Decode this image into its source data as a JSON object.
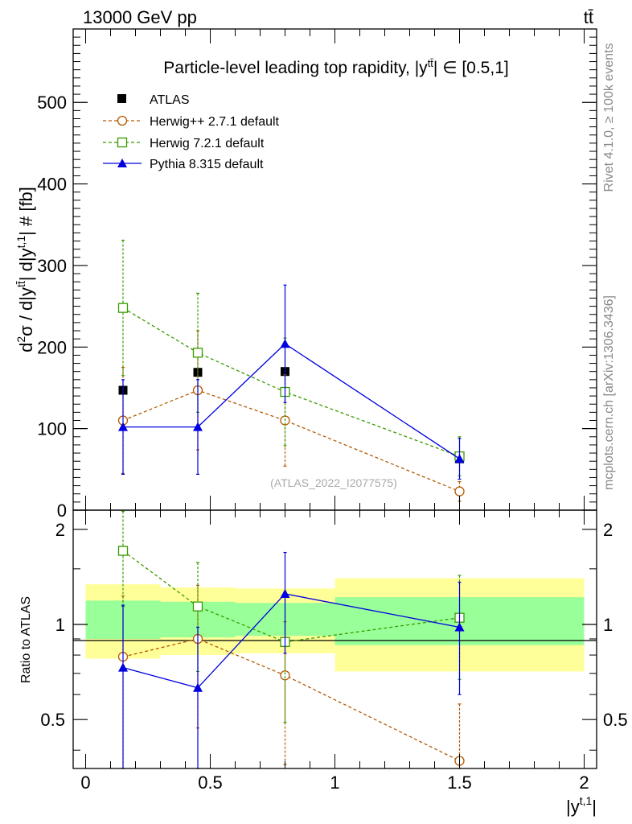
{
  "header": {
    "energy": "13000 GeV pp",
    "process": "tt̄"
  },
  "side_texts": {
    "rivet": "Rivet 4.1.0, ≥ 100k events",
    "mcplots": "mcplots.cern.ch [arXiv:1306.3436]"
  },
  "watermark": "(ATLAS_2022_I2077575)",
  "colors": {
    "atlas": "#000000",
    "herwigpp": "#b35900",
    "herwig7": "#3a9a00",
    "pythia": "#0000e0",
    "band_outer": "#ffff99",
    "band_inner": "#99ff99"
  },
  "chart_data": [
    {
      "type": "scatter",
      "title": "Particle-level leading top rapidity, |y^{tt̄}| ∈ [0.5,1]",
      "title_parts": {
        "main": "Particle-level leading top rapidity, |y",
        "sup": "tt̄",
        "tail": "| ∈ [0.5,1]"
      },
      "ylabel": "d²σ / d|y^{tt̄}| d|y^{t,1}| # [fb]",
      "ylabel_parts": {
        "d": "d",
        "sq": "2",
        "sigma": "σ / d|y",
        "sup1": "tt̄",
        "mid": "| d|y",
        "sup2": "t,1",
        "tail": "| # [fb]"
      },
      "xlim": [
        -0.05,
        2.05
      ],
      "ylim": [
        0,
        590
      ],
      "y_ticks": [
        0,
        100,
        200,
        300,
        400,
        500
      ],
      "y_tick_labels": [
        "0",
        "100",
        "200",
        "300",
        "400",
        "500"
      ],
      "x_bins": [
        [
          0,
          0.3
        ],
        [
          0.3,
          0.6
        ],
        [
          0.6,
          1.0
        ],
        [
          1.0,
          2.0
        ]
      ],
      "x": [
        0.15,
        0.45,
        0.8,
        1.5
      ],
      "series": [
        {
          "name": "ATLAS",
          "marker": "square-filled",
          "line": "none",
          "values": [
            147,
            169,
            170,
            63
          ],
          "err": [
            0,
            0,
            0,
            0
          ]
        },
        {
          "name": "Herwig++ 2.7.1 default",
          "marker": "circle-open",
          "line": "dashed",
          "values": [
            110,
            147,
            110,
            23
          ],
          "err": [
            65,
            73,
            56,
            12
          ]
        },
        {
          "name": "Herwig 7.2.1 default",
          "marker": "square-open",
          "line": "dashed",
          "values": [
            248,
            193,
            145,
            66
          ],
          "err": [
            83,
            73,
            66,
            24
          ]
        },
        {
          "name": "Pythia 8.315 default",
          "marker": "triangle-filled",
          "line": "solid",
          "values": [
            102,
            102,
            204,
            63
          ],
          "err": [
            58,
            58,
            72,
            25
          ]
        }
      ]
    },
    {
      "type": "scatter",
      "title": "",
      "ylabel": "Ratio to ATLAS",
      "xlabel": "|y^{t,1}|",
      "xlabel_parts": {
        "main": "|y",
        "sup": "t,1",
        "tail": "|"
      },
      "xlim": [
        -0.05,
        2.05
      ],
      "ylim": [
        0.35,
        2.3
      ],
      "y_ticks": [
        0.5,
        1,
        2
      ],
      "y_tick_labels": [
        "0.5",
        "1",
        "2"
      ],
      "x_ticks": [
        0,
        0.5,
        1,
        1.5,
        2
      ],
      "x_tick_labels": [
        "0",
        "0.5",
        "1",
        "1.5",
        "2"
      ],
      "x": [
        0.15,
        0.45,
        0.8,
        1.5
      ],
      "bands": [
        {
          "xlo": 0.0,
          "xhi": 0.3,
          "outer": [
            0.78,
            1.34
          ],
          "inner": [
            0.9,
            1.19
          ]
        },
        {
          "xlo": 0.3,
          "xhi": 0.6,
          "outer": [
            0.8,
            1.31
          ],
          "inner": [
            0.91,
            1.18
          ]
        },
        {
          "xlo": 0.6,
          "xhi": 1.0,
          "outer": [
            0.81,
            1.3
          ],
          "inner": [
            0.92,
            1.17
          ]
        },
        {
          "xlo": 1.0,
          "xhi": 2.0,
          "outer": [
            0.71,
            1.4
          ],
          "inner": [
            0.86,
            1.22
          ]
        }
      ],
      "series": [
        {
          "name": "Herwig++ 2.7.1 default",
          "values": [
            0.79,
            0.9,
            0.69,
            0.37
          ],
          "err": [
            0.44,
            0.43,
            0.33,
            0.19
          ]
        },
        {
          "name": "Herwig 7.2.1 default",
          "values": [
            1.71,
            1.14,
            0.88,
            1.05
          ],
          "err": [
            0.57,
            0.43,
            0.39,
            0.38
          ]
        },
        {
          "name": "Pythia 8.315 default",
          "values": [
            0.73,
            0.63,
            1.25,
            0.98
          ],
          "err": [
            0.42,
            0.35,
            0.44,
            0.38
          ]
        }
      ]
    }
  ]
}
